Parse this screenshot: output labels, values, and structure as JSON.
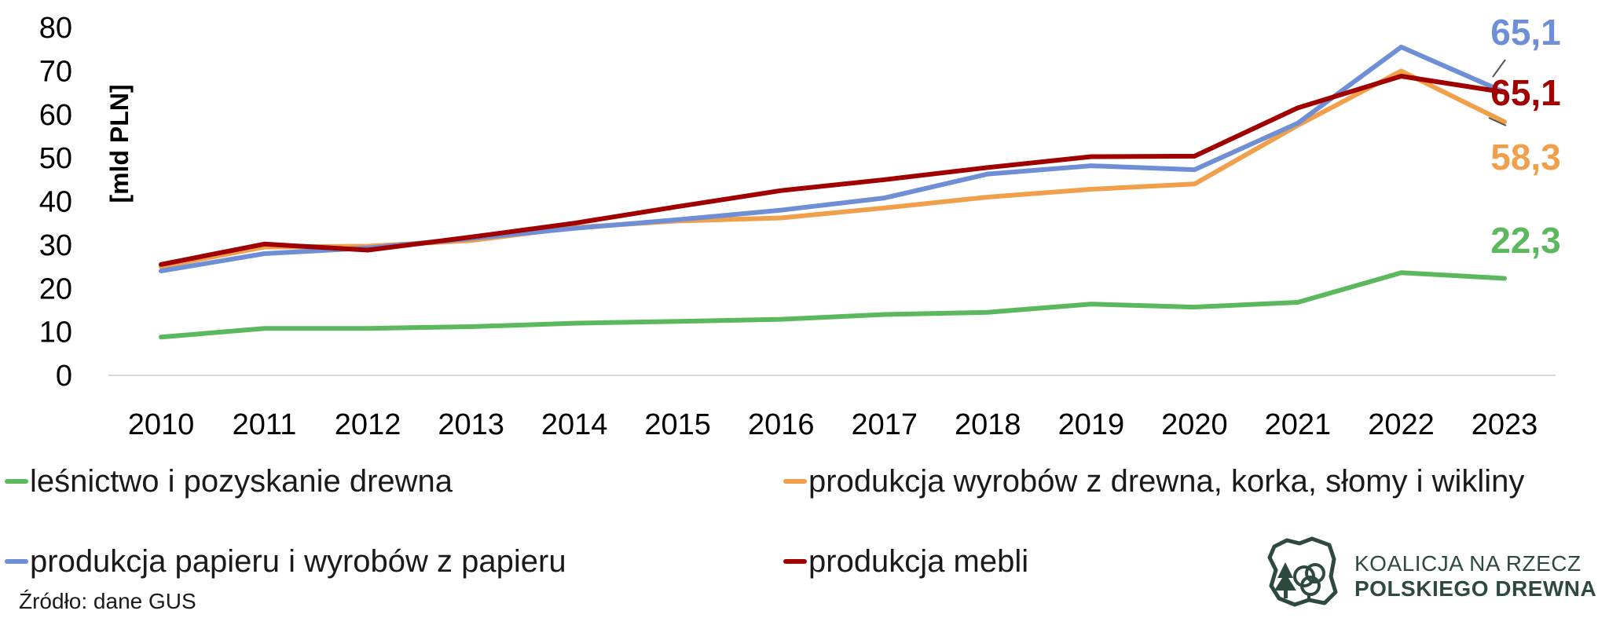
{
  "chart_data": {
    "type": "line",
    "ylabel": "[mld PLN]",
    "ylim": [
      0,
      80
    ],
    "yticks": [
      0,
      10,
      20,
      30,
      40,
      50,
      60,
      70,
      80
    ],
    "x": [
      "2010",
      "2011",
      "2012",
      "2013",
      "2014",
      "2015",
      "2016",
      "2017",
      "2018",
      "2019",
      "2020",
      "2021",
      "2022",
      "2023"
    ],
    "series": [
      {
        "name": "leśnictwo i pozyskanie drewna",
        "color": "#5cb85c",
        "values": [
          8.8,
          10.8,
          10.8,
          11.2,
          12.0,
          12.4,
          12.9,
          14.0,
          14.5,
          16.4,
          15.7,
          16.8,
          23.6,
          22.3
        ],
        "end_label": "22,3"
      },
      {
        "name": "produkcja wyrobów z drewna, korka, słomy i wikliny",
        "color": "#f0a04b",
        "values": [
          25.0,
          29.5,
          29.7,
          31.0,
          34.0,
          35.5,
          36.2,
          38.5,
          41.0,
          42.8,
          44.0,
          57.5,
          70.0,
          58.3
        ],
        "end_label": "58,3"
      },
      {
        "name": "produkcja papieru i wyrobów z papieru",
        "color": "#6e8fd6",
        "values": [
          24.0,
          28.0,
          29.3,
          31.5,
          33.8,
          35.8,
          38.0,
          40.8,
          46.3,
          48.2,
          47.3,
          58.0,
          75.5,
          65.1
        ],
        "end_label": "65,1"
      },
      {
        "name": "produkcja mebli",
        "color": "#a00000",
        "values": [
          25.5,
          30.2,
          28.8,
          31.8,
          35.0,
          38.8,
          42.5,
          45.0,
          47.8,
          50.3,
          50.4,
          61.5,
          68.8,
          65.1
        ],
        "end_label": "65,1"
      }
    ]
  },
  "legend": [
    {
      "label": "leśnictwo i pozyskanie drewna",
      "color": "#5cb85c"
    },
    {
      "label": "produkcja wyrobów z drewna, korka, słomy i wikliny",
      "color": "#f0a04b"
    },
    {
      "label": "produkcja papieru i wyrobów z papieru",
      "color": "#6e8fd6"
    },
    {
      "label": "produkcja mebli",
      "color": "#a00000"
    }
  ],
  "source": "Źródło: dane GUS",
  "logo": {
    "line1": "KOALICJA NA RZECZ",
    "line2": "POLSKIEGO DREWNA",
    "color": "#2e4a3f"
  }
}
